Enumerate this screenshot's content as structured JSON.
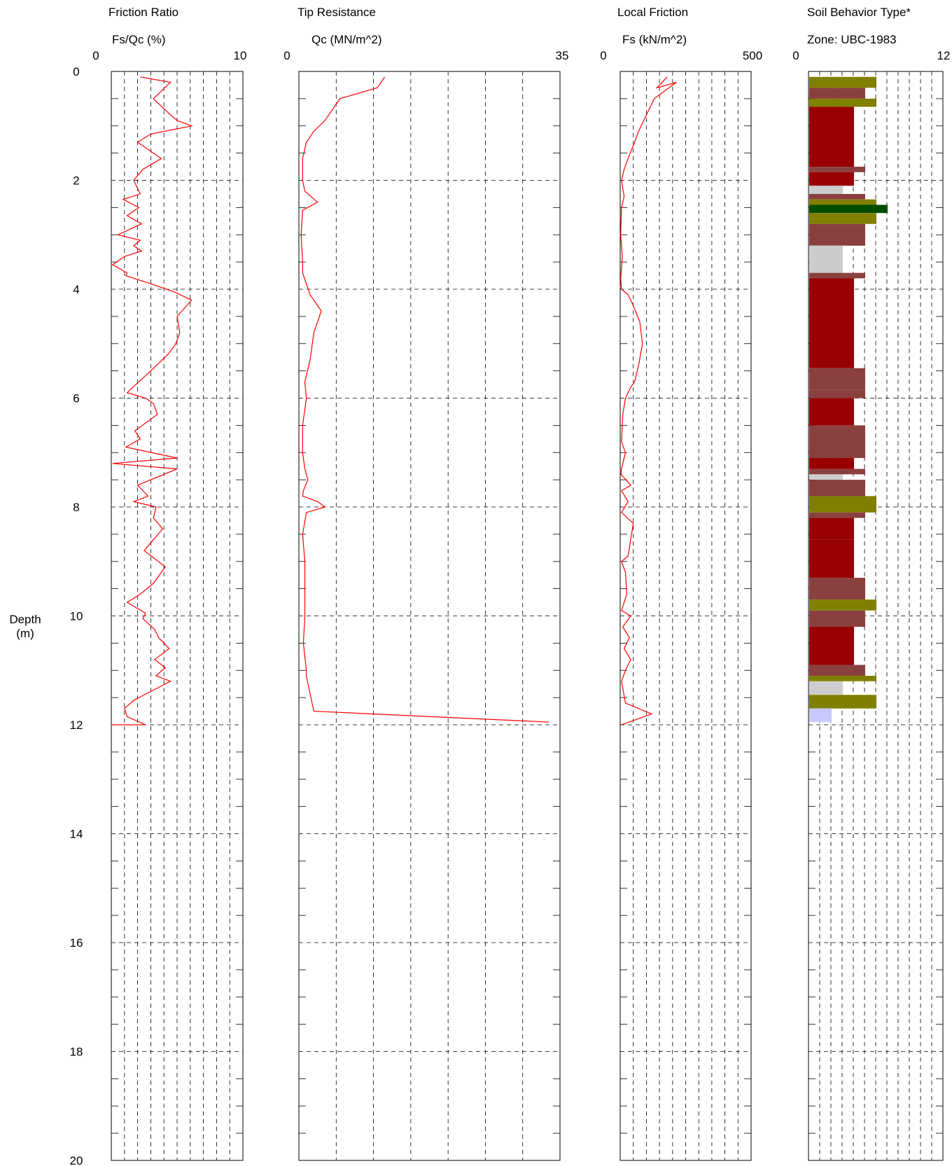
{
  "depth_axis": {
    "label_line1": "Depth",
    "label_line2": "(m)",
    "range": [
      0,
      20
    ],
    "ticks": [
      "0",
      "2",
      "4",
      "6",
      "8",
      "10",
      "12",
      "14",
      "16",
      "18",
      "20"
    ]
  },
  "panels": [
    {
      "id": "fr",
      "title": "Friction Ratio",
      "subtitle": "Fs/Qc (%)",
      "min_label": "0",
      "max_label": "10"
    },
    {
      "id": "qc",
      "title": "Tip Resistance",
      "subtitle": "Qc (MN/m^2)",
      "min_label": "0",
      "max_label": "35"
    },
    {
      "id": "fs",
      "title": "Local Friction",
      "subtitle": "Fs (kN/m^2)",
      "min_label": "0",
      "max_label": "500"
    },
    {
      "id": "sbt",
      "title": "Soil Behavior Type*",
      "subtitle": "Zone: UBC-1983",
      "min_label": "0",
      "max_label": "12"
    }
  ],
  "colors": {
    "trace": "#ff0000",
    "grid": "#000000",
    "zone_3": "#cccccc",
    "zone_3_light": "#bbbbff",
    "zone_4": "#990000",
    "zone_5": "#8b4040",
    "zone_6": "#808000",
    "zone_7": "#004d00",
    "zone_2": "#c8c8ff"
  },
  "chart_data": [
    {
      "type": "line",
      "title": "Friction Ratio",
      "xlabel": "Fs/Qc (%)",
      "ylabel": "Depth (m)",
      "xlim": [
        0,
        10
      ],
      "ylim": [
        0,
        20
      ],
      "series": [
        {
          "x": [
            2.2,
            4.5,
            3.2,
            4.5,
            5.0,
            6.1,
            3.0,
            2.0,
            3.8,
            2.4,
            1.7,
            2.2,
            0.9,
            2.1,
            1.2,
            2.3,
            0.5,
            2.2,
            1.7,
            2.3,
            1.0,
            0.1,
            1.2,
            1.1,
            3.0,
            4.8,
            6.1,
            5.0,
            5.2,
            4.9,
            4.3,
            3.0,
            1.2,
            2.6,
            3.2,
            3.5,
            1.8,
            2.2,
            1.1,
            5.0,
            0.1,
            5.0,
            2.0,
            2.8,
            1.7,
            3.4,
            3.2,
            3.9,
            2.5,
            4.1,
            3.2,
            2.2,
            1.2,
            2.6,
            2.4,
            3.3,
            3.6,
            4.4,
            3.3,
            4.1,
            3.4,
            4.5,
            3.3,
            1.7,
            1.0,
            1.2,
            2.6,
            0.0
          ],
          "y": [
            0.1,
            0.2,
            0.5,
            0.8,
            0.9,
            1.0,
            1.15,
            1.3,
            1.6,
            1.8,
            2.0,
            2.25,
            2.35,
            2.5,
            2.65,
            2.8,
            3.0,
            3.1,
            3.2,
            3.3,
            3.4,
            3.55,
            3.7,
            3.75,
            3.9,
            4.05,
            4.2,
            4.5,
            4.8,
            5.0,
            5.2,
            5.5,
            5.9,
            6.0,
            6.1,
            6.3,
            6.6,
            6.75,
            6.9,
            7.1,
            7.2,
            7.3,
            7.6,
            7.8,
            7.9,
            8.0,
            8.2,
            8.4,
            8.8,
            9.1,
            9.4,
            9.6,
            9.75,
            9.95,
            10.05,
            10.25,
            10.4,
            10.6,
            10.8,
            10.95,
            11.1,
            11.2,
            11.35,
            11.55,
            11.7,
            11.85,
            12.0,
            12.0
          ]
        }
      ]
    },
    {
      "type": "line",
      "title": "Tip Resistance",
      "xlabel": "Qc (MN/m^2)",
      "ylabel": "Depth (m)",
      "xlim": [
        0,
        35
      ],
      "ylim": [
        0,
        20
      ],
      "series": [
        {
          "x": [
            11.5,
            10.5,
            5.5,
            3.5,
            2.0,
            1.0,
            0.5,
            0.5,
            0.8,
            2.5,
            0.5,
            0.3,
            0.5,
            0.5,
            1.5,
            3.0,
            2.0,
            1.5,
            0.8,
            1.0,
            0.5,
            0.5,
            0.8,
            1.2,
            0.6,
            0.5,
            2.5,
            3.5,
            1.0,
            0.5,
            0.8,
            0.8,
            0.6,
            1.0,
            1.0,
            1.3,
            2.0,
            33.5
          ],
          "y": [
            0.1,
            0.3,
            0.5,
            0.9,
            1.1,
            1.3,
            1.6,
            2.0,
            2.2,
            2.4,
            2.55,
            3.0,
            3.5,
            3.7,
            4.1,
            4.4,
            4.8,
            5.3,
            5.7,
            6.0,
            6.5,
            7.0,
            7.3,
            7.5,
            7.7,
            7.8,
            7.9,
            8.0,
            8.1,
            8.5,
            9.0,
            10.0,
            10.5,
            11.0,
            11.1,
            11.3,
            11.75,
            11.95
          ]
        }
      ]
    },
    {
      "type": "line",
      "title": "Local Friction",
      "xlabel": "Fs (kN/m^2)",
      "ylabel": "Depth (m)",
      "xlim": [
        0,
        500
      ],
      "ylim": [
        0,
        20
      ],
      "series": [
        {
          "x": [
            180,
            140,
            215,
            130,
            100,
            70,
            55,
            30,
            15,
            5,
            15,
            5,
            2,
            8,
            5,
            2,
            5,
            30,
            50,
            75,
            85,
            70,
            55,
            40,
            20,
            10,
            5,
            20,
            10,
            5,
            3,
            40,
            5,
            30,
            5,
            50,
            30,
            5,
            20,
            25,
            5,
            40,
            10,
            35,
            15,
            40,
            20,
            5,
            20,
            120,
            5
          ],
          "y": [
            0.1,
            0.3,
            0.2,
            0.5,
            0.8,
            1.1,
            1.3,
            1.6,
            1.8,
            2.0,
            2.3,
            2.5,
            3.0,
            3.4,
            3.6,
            3.8,
            4.0,
            4.1,
            4.3,
            4.6,
            5.0,
            5.4,
            5.7,
            5.8,
            6.0,
            6.3,
            6.8,
            7.0,
            7.2,
            7.3,
            7.4,
            7.6,
            7.7,
            7.9,
            8.1,
            8.3,
            8.9,
            9.0,
            9.2,
            9.6,
            9.9,
            10.0,
            10.2,
            10.4,
            10.6,
            10.8,
            11.0,
            11.2,
            11.6,
            11.8,
            12.0
          ]
        }
      ]
    },
    {
      "type": "bar",
      "title": "Soil Behavior Type*",
      "xlabel": "Zone: UBC-1983",
      "ylabel": "Depth (m)",
      "xlim": [
        0,
        12
      ],
      "ylim": [
        0,
        20
      ],
      "intervals": [
        {
          "top": 0.1,
          "bottom": 0.3,
          "zone": 6
        },
        {
          "top": 0.3,
          "bottom": 0.5,
          "zone": 5
        },
        {
          "top": 0.5,
          "bottom": 0.65,
          "zone": 6
        },
        {
          "top": 0.65,
          "bottom": 1.75,
          "zone": 4
        },
        {
          "top": 1.75,
          "bottom": 1.85,
          "zone": 5
        },
        {
          "top": 1.85,
          "bottom": 2.1,
          "zone": 4
        },
        {
          "top": 2.1,
          "bottom": 2.15,
          "zone": 3
        },
        {
          "top": 2.15,
          "bottom": 2.25,
          "zone": 3
        },
        {
          "top": 2.25,
          "bottom": 2.35,
          "zone": 5
        },
        {
          "top": 2.35,
          "bottom": 2.45,
          "zone": 6
        },
        {
          "top": 2.45,
          "bottom": 2.6,
          "zone": 7
        },
        {
          "top": 2.6,
          "bottom": 2.7,
          "zone": 6
        },
        {
          "top": 2.7,
          "bottom": 2.8,
          "zone": 6
        },
        {
          "top": 2.8,
          "bottom": 3.2,
          "zone": 5
        },
        {
          "top": 3.2,
          "bottom": 3.7,
          "zone": 3
        },
        {
          "top": 3.7,
          "bottom": 3.8,
          "zone": 5
        },
        {
          "top": 3.8,
          "bottom": 5.45,
          "zone": 4
        },
        {
          "top": 5.45,
          "bottom": 5.85,
          "zone": 5
        },
        {
          "top": 5.85,
          "bottom": 6.0,
          "zone": 5
        },
        {
          "top": 6.0,
          "bottom": 6.5,
          "zone": 4
        },
        {
          "top": 6.5,
          "bottom": 7.1,
          "zone": 5
        },
        {
          "top": 7.1,
          "bottom": 7.3,
          "zone": 4
        },
        {
          "top": 7.3,
          "bottom": 7.4,
          "zone": 5
        },
        {
          "top": 7.4,
          "bottom": 7.5,
          "zone": 3
        },
        {
          "top": 7.5,
          "bottom": 7.8,
          "zone": 5
        },
        {
          "top": 7.8,
          "bottom": 8.1,
          "zone": 6
        },
        {
          "top": 8.1,
          "bottom": 8.2,
          "zone": 5
        },
        {
          "top": 8.2,
          "bottom": 8.6,
          "zone": 4
        },
        {
          "top": 8.6,
          "bottom": 9.3,
          "zone": 4
        },
        {
          "top": 9.3,
          "bottom": 9.7,
          "zone": 5
        },
        {
          "top": 9.7,
          "bottom": 9.9,
          "zone": 6
        },
        {
          "top": 9.9,
          "bottom": 10.2,
          "zone": 5
        },
        {
          "top": 10.2,
          "bottom": 10.9,
          "zone": 4
        },
        {
          "top": 10.9,
          "bottom": 11.1,
          "zone": 5
        },
        {
          "top": 11.1,
          "bottom": 11.2,
          "zone": 6
        },
        {
          "top": 11.2,
          "bottom": 11.45,
          "zone": 3
        },
        {
          "top": 11.45,
          "bottom": 11.7,
          "zone": 6
        },
        {
          "top": 11.7,
          "bottom": 11.95,
          "zone": 2
        }
      ]
    }
  ]
}
